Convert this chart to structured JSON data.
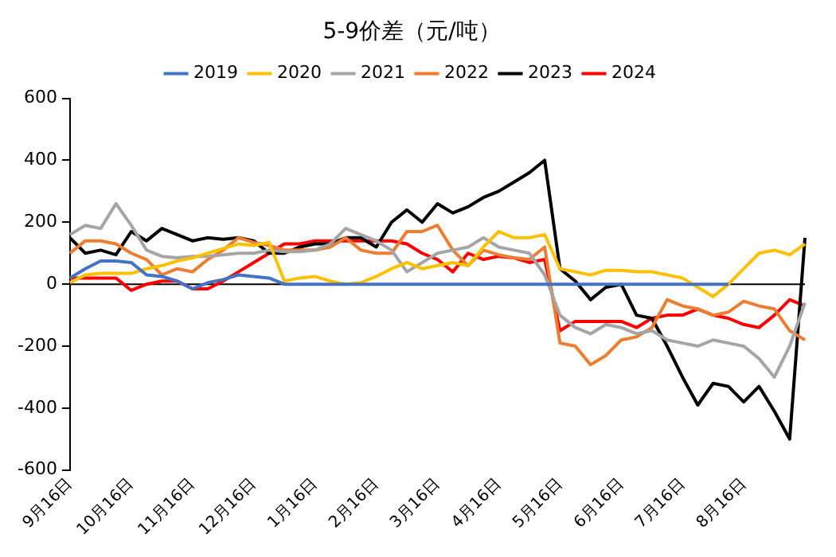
{
  "chart_data": {
    "type": "line",
    "title": "5-9价差（元/吨）",
    "categories": [
      "9月16日",
      null,
      null,
      null,
      "10月16日",
      null,
      null,
      null,
      "11月16日",
      null,
      null,
      null,
      "12月16日",
      null,
      null,
      null,
      "1月16日",
      null,
      null,
      null,
      "2月16日",
      null,
      null,
      null,
      "3月16日",
      null,
      null,
      null,
      "4月16日",
      null,
      null,
      null,
      "5月16日",
      null,
      null,
      null,
      "6月16日",
      null,
      null,
      null,
      "7月16日",
      null,
      null,
      null,
      "8月16日",
      null,
      null,
      null,
      null
    ],
    "series": [
      {
        "name": "2019",
        "color": "#4472c4",
        "values": [
          20,
          50,
          75,
          75,
          70,
          30,
          25,
          10,
          -15,
          5,
          15,
          30,
          25,
          20,
          0,
          0,
          0,
          0,
          0,
          0,
          0,
          0,
          0,
          0,
          0,
          0,
          0,
          0,
          0,
          0,
          0,
          0,
          0,
          0,
          0,
          0,
          0,
          0,
          0,
          0,
          0,
          0,
          0,
          0,
          null,
          null,
          null,
          null,
          null
        ]
      },
      {
        "name": "2020",
        "color": "#ffc000",
        "values": [
          5,
          30,
          35,
          35,
          35,
          50,
          60,
          75,
          85,
          100,
          115,
          130,
          125,
          135,
          10,
          20,
          25,
          10,
          0,
          5,
          25,
          50,
          70,
          50,
          60,
          70,
          60,
          120,
          170,
          150,
          150,
          160,
          50,
          40,
          30,
          45,
          45,
          40,
          40,
          30,
          20,
          -10,
          -40,
          0,
          50,
          100,
          110,
          95,
          130
        ]
      },
      {
        "name": "2021",
        "color": "#a5a5a5",
        "values": [
          160,
          190,
          180,
          260,
          190,
          110,
          90,
          85,
          90,
          90,
          95,
          100,
          100,
          110,
          105,
          105,
          110,
          130,
          180,
          160,
          140,
          110,
          40,
          70,
          100,
          110,
          120,
          150,
          120,
          110,
          100,
          30,
          -100,
          -140,
          -160,
          -130,
          -140,
          -160,
          -150,
          -180,
          -190,
          -200,
          -180,
          -190,
          -200,
          -240,
          -300,
          -200,
          -60
        ]
      },
      {
        "name": "2022",
        "color": "#ed7d31",
        "values": [
          100,
          140,
          140,
          130,
          100,
          80,
          30,
          50,
          40,
          80,
          110,
          150,
          135,
          125,
          110,
          110,
          110,
          120,
          150,
          110,
          100,
          100,
          170,
          170,
          190,
          110,
          60,
          110,
          95,
          85,
          80,
          120,
          -190,
          -200,
          -260,
          -230,
          -180,
          -170,
          -140,
          -50,
          -70,
          -80,
          -100,
          -90,
          -55,
          -70,
          -80,
          -150,
          -180
        ]
      },
      {
        "name": "2023",
        "color": "#000000",
        "values": [
          150,
          100,
          110,
          95,
          170,
          140,
          180,
          160,
          140,
          150,
          145,
          150,
          140,
          100,
          100,
          120,
          130,
          130,
          150,
          150,
          120,
          200,
          240,
          200,
          260,
          230,
          250,
          280,
          300,
          330,
          360,
          400,
          50,
          10,
          -50,
          -10,
          0,
          -100,
          -110,
          -200,
          -300,
          -390,
          -320,
          -330,
          -380,
          -330,
          -410,
          -500,
          150
        ]
      },
      {
        "name": "2024",
        "color": "#ff0000",
        "values": [
          20,
          20,
          20,
          20,
          -20,
          0,
          10,
          10,
          -15,
          -15,
          10,
          40,
          70,
          100,
          130,
          130,
          140,
          140,
          140,
          140,
          140,
          140,
          130,
          100,
          80,
          40,
          100,
          80,
          90,
          85,
          70,
          80,
          -150,
          -120,
          -120,
          -120,
          -120,
          -140,
          -110,
          -100,
          -100,
          -80,
          -100,
          -110,
          -130,
          -140,
          -100,
          -50,
          -70
        ]
      }
    ],
    "ylim": [
      -600,
      600
    ],
    "yticks": [
      -600,
      -400,
      -200,
      0,
      200,
      400,
      600
    ],
    "ref_lines": [
      {
        "axis": "y",
        "value": 0,
        "color": "#000000"
      }
    ],
    "grid": false,
    "legend": "top",
    "marker": "none",
    "line_style": "solid"
  }
}
